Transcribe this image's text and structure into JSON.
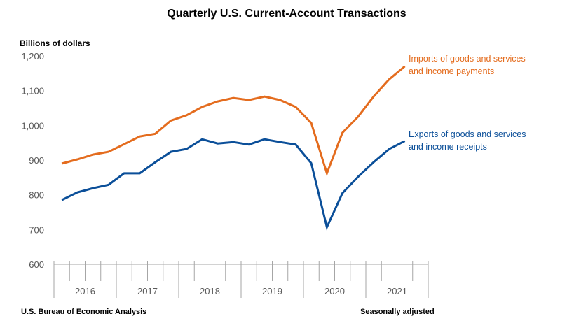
{
  "chart_data": {
    "type": "line",
    "title": "Quarterly U.S. Current-Account Transactions",
    "ylabel": "Billions of dollars",
    "xlabel": "",
    "ylim": [
      600,
      1200
    ],
    "yticks": [
      1200,
      1100,
      1000,
      900,
      800,
      700,
      600
    ],
    "ytick_labels": [
      "1,200",
      "1,100",
      "1,000",
      "900",
      "800",
      "700",
      "600"
    ],
    "years": [
      "2016",
      "2017",
      "2018",
      "2019",
      "2020",
      "2021"
    ],
    "quarters_total": 24,
    "grid": false,
    "x": [
      "2016 Q1",
      "2016 Q2",
      "2016 Q3",
      "2016 Q4",
      "2017 Q1",
      "2017 Q2",
      "2017 Q3",
      "2017 Q4",
      "2018 Q1",
      "2018 Q2",
      "2018 Q3",
      "2018 Q4",
      "2019 Q1",
      "2019 Q2",
      "2019 Q3",
      "2019 Q4",
      "2020 Q1",
      "2020 Q2",
      "2020 Q3",
      "2020 Q4",
      "2021 Q1",
      "2021 Q2",
      "2021 Q3"
    ],
    "series": [
      {
        "name": "Imports of goods and services and income payments",
        "label_lines": [
          "Imports of goods and services",
          "and income payments"
        ],
        "color": "#E46C1E",
        "values": [
          890,
          902,
          916,
          924,
          946,
          968,
          976,
          1014,
          1029,
          1053,
          1069,
          1079,
          1073,
          1083,
          1073,
          1053,
          1007,
          862,
          979,
          1025,
          1083,
          1133,
          1170
        ]
      },
      {
        "name": "Exports of goods and services and income receipts",
        "label_lines": [
          "Exports of goods and services",
          "and income receipts"
        ],
        "color": "#0B4F99",
        "values": [
          785,
          807,
          819,
          829,
          862,
          862,
          894,
          924,
          932,
          960,
          948,
          952,
          945,
          960,
          952,
          945,
          891,
          707,
          805,
          852,
          894,
          932,
          955
        ]
      }
    ]
  },
  "footer": {
    "source": "U.S. Bureau of Economic Analysis",
    "note": "Seasonally adjusted"
  },
  "colors": {
    "axis": "#A6A6A6",
    "tick_text": "#595959"
  }
}
